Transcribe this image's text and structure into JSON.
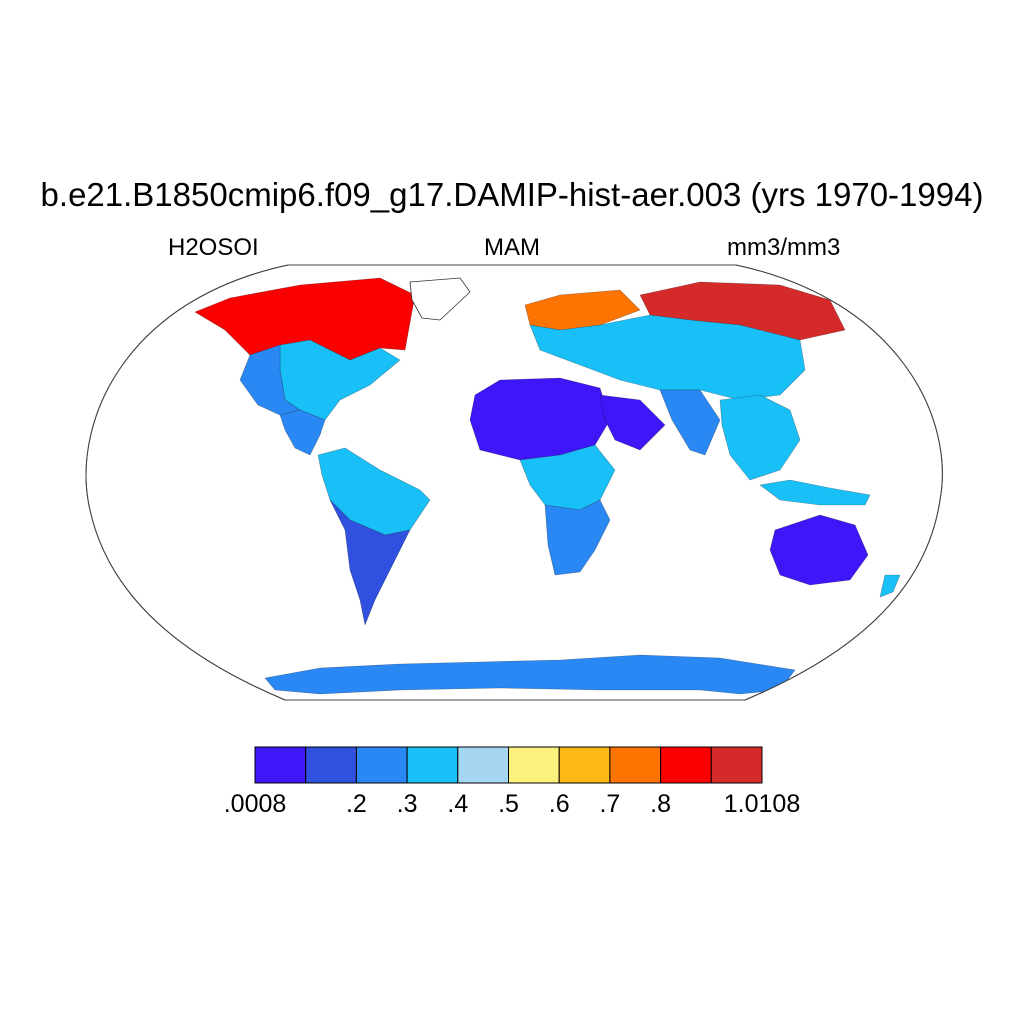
{
  "title": "b.e21.B1850cmip6.f09_g17.DAMIP-hist-aer.003 (yrs 1970-1994)",
  "subtitle_left": "H2OSOI",
  "subtitle_center": "MAM",
  "subtitle_right": "mm3/mm3",
  "colorbar": {
    "colors": [
      "#3f16f7",
      "#3050e0",
      "#2a88f5",
      "#19c0f8",
      "#a5d6f2",
      "#fdf17e",
      "#fcb915",
      "#fd7403",
      "#fb0000",
      "#d52a2a"
    ],
    "labels": [
      {
        "text": ".0008",
        "index": 0
      },
      {
        "text": ".2",
        "index": 2
      },
      {
        "text": ".3",
        "index": 3
      },
      {
        "text": ".4",
        "index": 4
      },
      {
        "text": ".5",
        "index": 5
      },
      {
        "text": ".6",
        "index": 6
      },
      {
        "text": ".7",
        "index": 7
      },
      {
        "text": ".8",
        "index": 8
      },
      {
        "text": "1.0108",
        "index": 10
      }
    ]
  },
  "map": {
    "projection": "Robinson",
    "variable": "soil moisture",
    "regions": [
      {
        "name": "Arctic North America",
        "level": 8
      },
      {
        "name": "Eastern North America",
        "level": 3
      },
      {
        "name": "Western United States",
        "level": 2
      },
      {
        "name": "Central America",
        "level": 2
      },
      {
        "name": "Amazon",
        "level": 3
      },
      {
        "name": "Southern South America",
        "level": 1
      },
      {
        "name": "Sahara",
        "level": 0
      },
      {
        "name": "Arabia",
        "level": 0
      },
      {
        "name": "Central Africa",
        "level": 3
      },
      {
        "name": "Southern Africa",
        "level": 2
      },
      {
        "name": "Northern Europe",
        "level": 7
      },
      {
        "name": "Siberia",
        "level": 9
      },
      {
        "name": "Central Asia",
        "level": 3
      },
      {
        "name": "South Asia",
        "level": 2
      },
      {
        "name": "Southeast Asia",
        "level": 3
      },
      {
        "name": "Australia",
        "level": 0
      },
      {
        "name": "Antarctica coast",
        "level": 2
      }
    ]
  }
}
